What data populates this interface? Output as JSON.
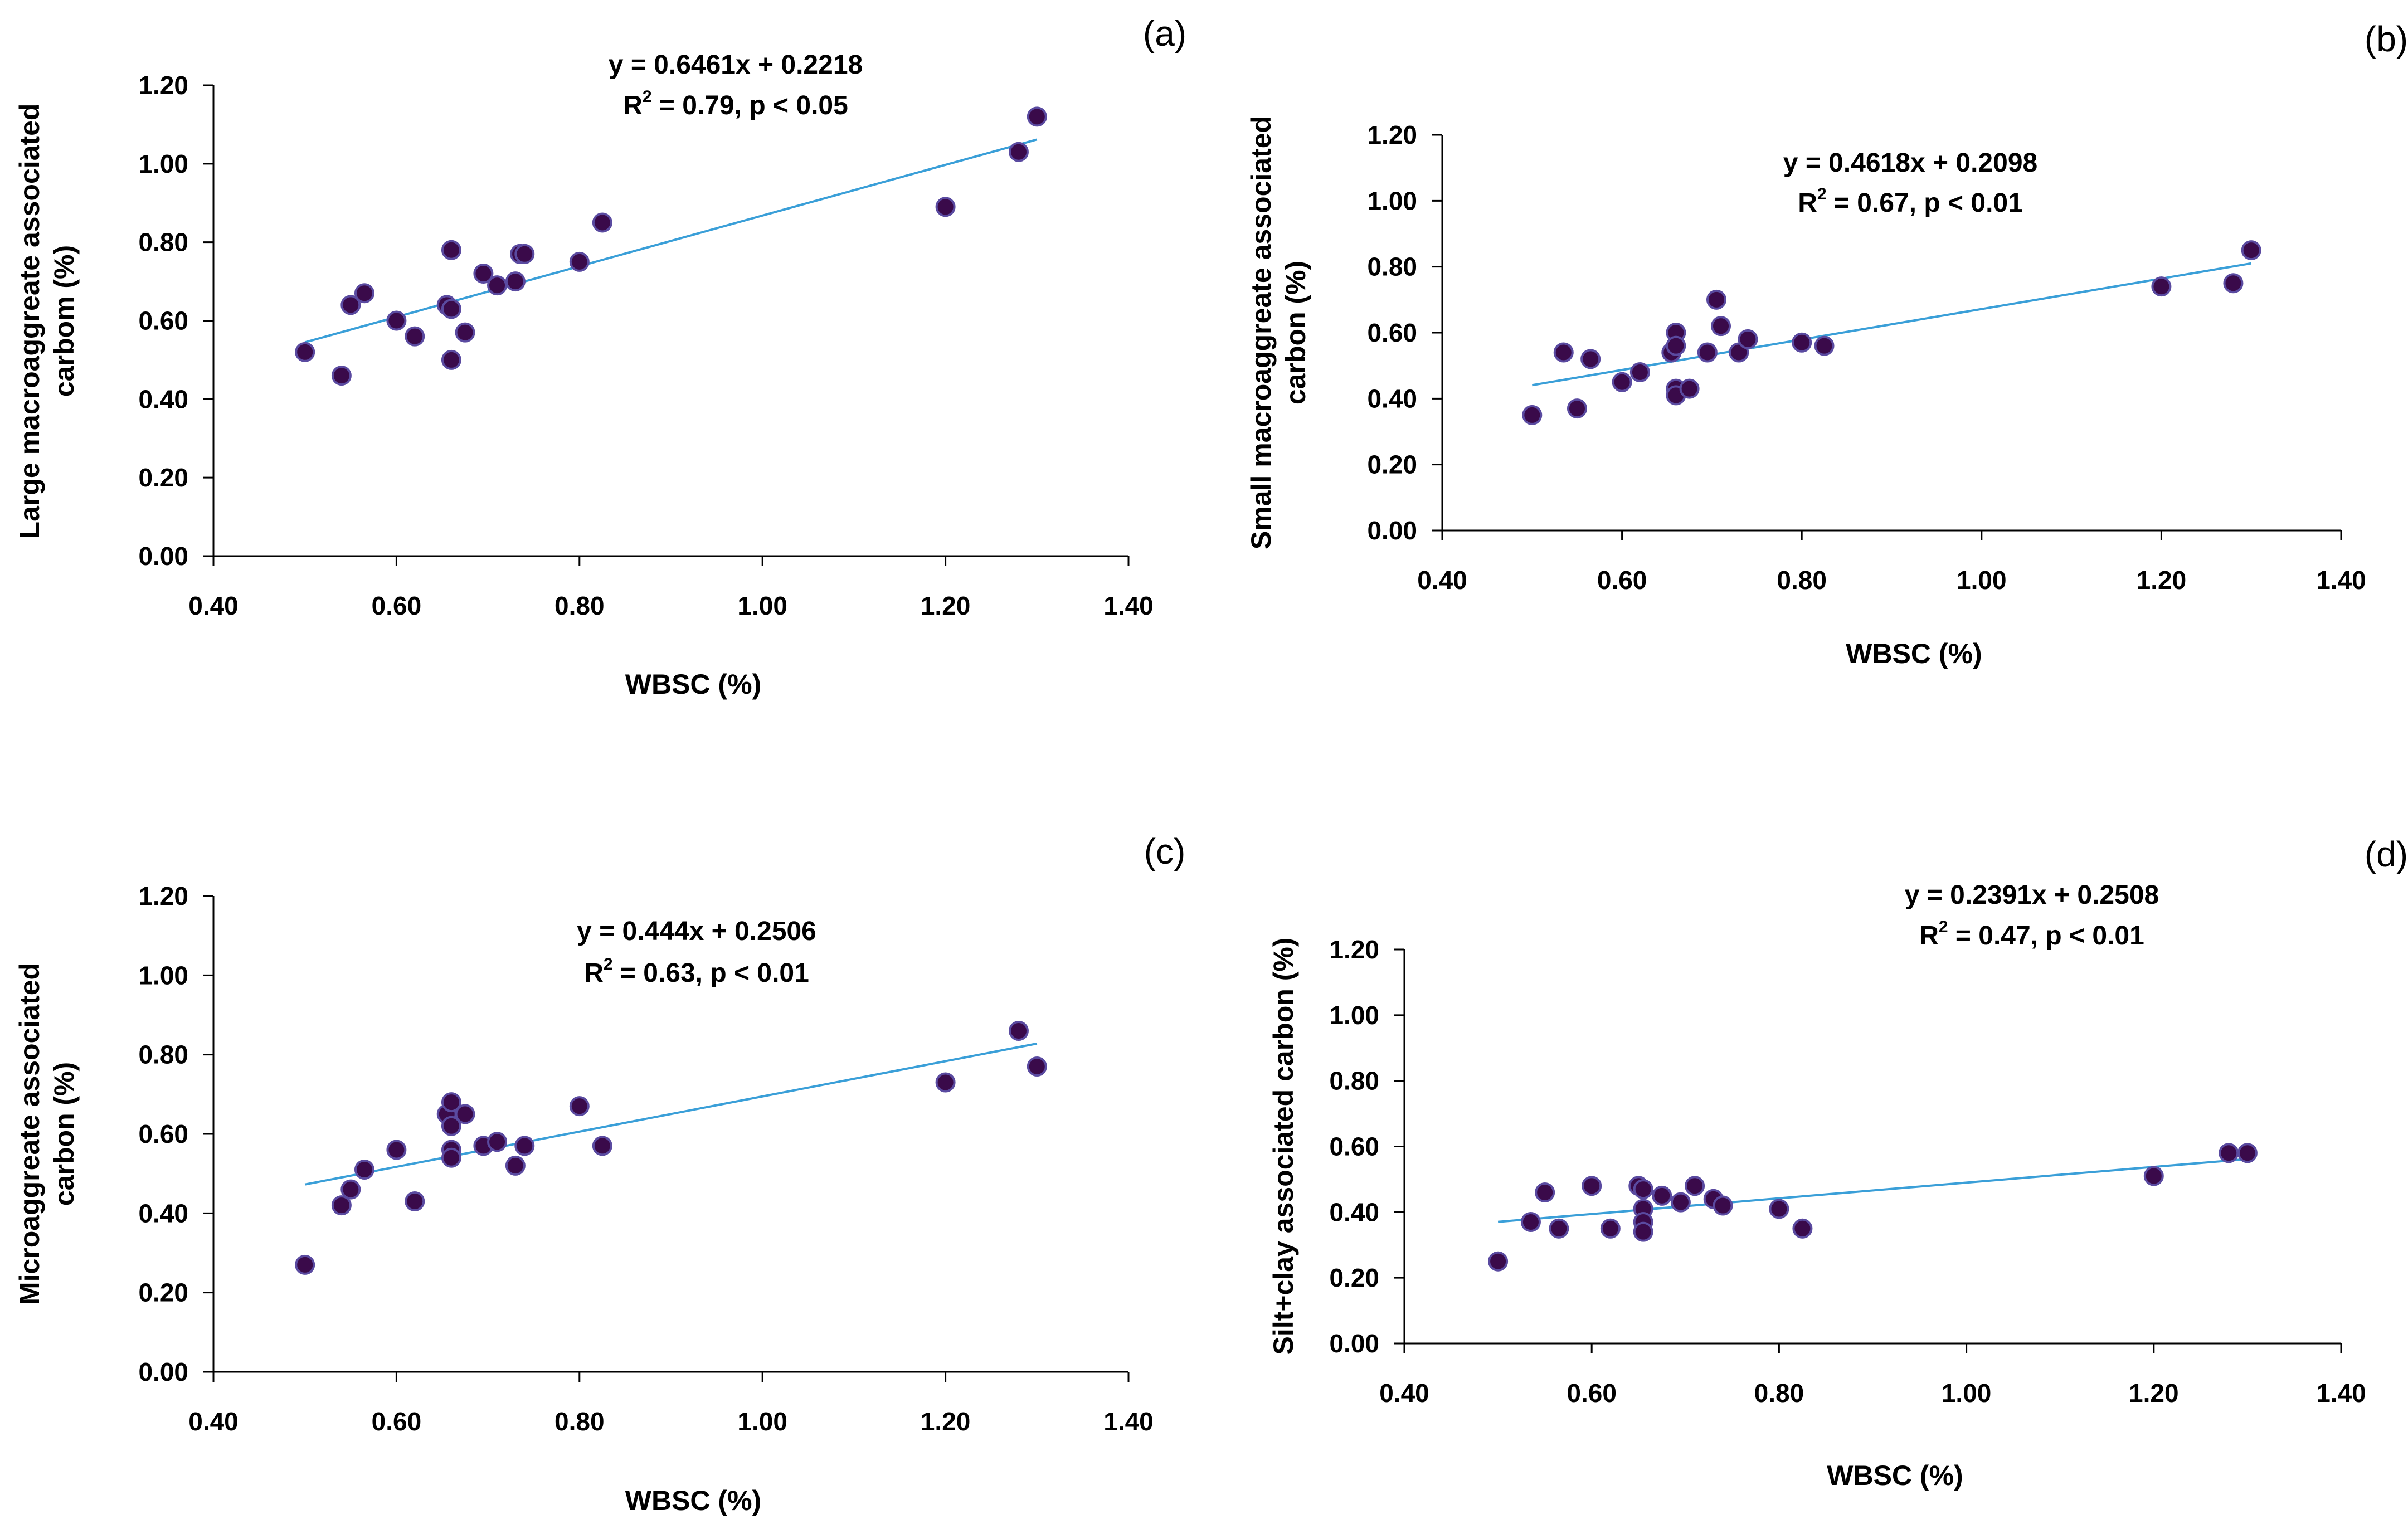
{
  "chart_data": [
    {
      "type": "scatter",
      "panel_label": "(a)",
      "equation": "y = 0.6461x + 0.2218",
      "r2_prefix": "R",
      "r2_exp": "2",
      "r2_suffix": " = 0.79, p < 0.05",
      "slope": 0.6461,
      "intercept": 0.2218,
      "xlabel": "WBSC (%)",
      "ylabel_lines": [
        "Large macroaggreate associated",
        "carbom (%)"
      ],
      "xlim": [
        0.4,
        1.4
      ],
      "ylim": [
        0.0,
        1.2
      ],
      "xticks": [
        "0.40",
        "0.60",
        "0.80",
        "1.00",
        "1.20",
        "1.40"
      ],
      "yticks": [
        "0.00",
        "0.20",
        "0.40",
        "0.60",
        "0.80",
        "1.00",
        "1.20"
      ],
      "grid": false,
      "points": [
        [
          0.5,
          0.52
        ],
        [
          0.54,
          0.46
        ],
        [
          0.55,
          0.64
        ],
        [
          0.565,
          0.67
        ],
        [
          0.6,
          0.6
        ],
        [
          0.62,
          0.56
        ],
        [
          0.655,
          0.64
        ],
        [
          0.66,
          0.78
        ],
        [
          0.66,
          0.63
        ],
        [
          0.66,
          0.5
        ],
        [
          0.675,
          0.57
        ],
        [
          0.695,
          0.72
        ],
        [
          0.71,
          0.69
        ],
        [
          0.73,
          0.7
        ],
        [
          0.735,
          0.77
        ],
        [
          0.74,
          0.77
        ],
        [
          0.8,
          0.75
        ],
        [
          0.825,
          0.85
        ],
        [
          1.2,
          0.89
        ],
        [
          1.28,
          1.03
        ],
        [
          1.3,
          1.12
        ]
      ]
    },
    {
      "type": "scatter",
      "panel_label": "(b)",
      "equation": "y = 0.4618x + 0.2098",
      "r2_prefix": "R",
      "r2_exp": "2",
      "r2_suffix": " = 0.67, p < 0.01",
      "slope": 0.4618,
      "intercept": 0.2098,
      "xlabel": "WBSC (%)",
      "ylabel_lines": [
        "Small macroaggreate associated",
        "carbon (%)"
      ],
      "xlim": [
        0.4,
        1.4
      ],
      "ylim": [
        0.0,
        1.2
      ],
      "xticks": [
        "0.40",
        "0.60",
        "0.80",
        "1.00",
        "1.20",
        "1.40"
      ],
      "yticks": [
        "0.00",
        "0.20",
        "0.40",
        "0.60",
        "0.80",
        "1.00",
        "1.20"
      ],
      "grid": false,
      "points": [
        [
          0.5,
          0.35
        ],
        [
          0.535,
          0.54
        ],
        [
          0.55,
          0.37
        ],
        [
          0.565,
          0.52
        ],
        [
          0.6,
          0.45
        ],
        [
          0.62,
          0.48
        ],
        [
          0.655,
          0.54
        ],
        [
          0.66,
          0.6
        ],
        [
          0.66,
          0.56
        ],
        [
          0.66,
          0.43
        ],
        [
          0.66,
          0.41
        ],
        [
          0.675,
          0.43
        ],
        [
          0.695,
          0.54
        ],
        [
          0.705,
          0.7
        ],
        [
          0.71,
          0.62
        ],
        [
          0.73,
          0.54
        ],
        [
          0.74,
          0.58
        ],
        [
          0.8,
          0.57
        ],
        [
          0.825,
          0.56
        ],
        [
          1.2,
          0.74
        ],
        [
          1.28,
          0.75
        ],
        [
          1.3,
          0.85
        ]
      ]
    },
    {
      "type": "scatter",
      "panel_label": "(c)",
      "equation": "y = 0.444x + 0.2506",
      "r2_prefix": "R",
      "r2_exp": "2",
      "r2_suffix": " = 0.63, p < 0.01",
      "slope": 0.444,
      "intercept": 0.2506,
      "xlabel": "WBSC (%)",
      "ylabel_lines": [
        "Microaggreate associated",
        "carbon (%)"
      ],
      "xlim": [
        0.4,
        1.4
      ],
      "ylim": [
        0.0,
        1.2
      ],
      "xticks": [
        "0.40",
        "0.60",
        "0.80",
        "1.00",
        "1.20",
        "1.40"
      ],
      "yticks": [
        "0.00",
        "0.20",
        "0.40",
        "0.60",
        "0.80",
        "1.00",
        "1.20"
      ],
      "grid": false,
      "points": [
        [
          0.5,
          0.27
        ],
        [
          0.54,
          0.42
        ],
        [
          0.55,
          0.46
        ],
        [
          0.565,
          0.51
        ],
        [
          0.6,
          0.56
        ],
        [
          0.62,
          0.43
        ],
        [
          0.655,
          0.65
        ],
        [
          0.66,
          0.68
        ],
        [
          0.66,
          0.62
        ],
        [
          0.66,
          0.56
        ],
        [
          0.66,
          0.54
        ],
        [
          0.675,
          0.65
        ],
        [
          0.695,
          0.57
        ],
        [
          0.71,
          0.58
        ],
        [
          0.73,
          0.52
        ],
        [
          0.74,
          0.57
        ],
        [
          0.8,
          0.67
        ],
        [
          0.825,
          0.57
        ],
        [
          1.2,
          0.73
        ],
        [
          1.28,
          0.86
        ],
        [
          1.3,
          0.77
        ]
      ]
    },
    {
      "type": "scatter",
      "panel_label": "(d)",
      "equation": "y = 0.2391x + 0.2508",
      "r2_prefix": "R",
      "r2_exp": "2",
      "r2_suffix": " = 0.47, p < 0.01",
      "slope": 0.2391,
      "intercept": 0.2508,
      "xlabel": "WBSC (%)",
      "ylabel_lines": [
        "Silt+clay associated  carbon (%)"
      ],
      "xlim": [
        0.4,
        1.4
      ],
      "ylim": [
        0.0,
        1.2
      ],
      "xticks": [
        "0.40",
        "0.60",
        "0.80",
        "1.00",
        "1.20",
        "1.40"
      ],
      "yticks": [
        "0.00",
        "0.20",
        "0.40",
        "0.60",
        "0.80",
        "1.00",
        "1.20"
      ],
      "grid": false,
      "points": [
        [
          0.5,
          0.25
        ],
        [
          0.535,
          0.37
        ],
        [
          0.55,
          0.46
        ],
        [
          0.565,
          0.35
        ],
        [
          0.6,
          0.48
        ],
        [
          0.62,
          0.35
        ],
        [
          0.65,
          0.48
        ],
        [
          0.655,
          0.47
        ],
        [
          0.655,
          0.41
        ],
        [
          0.655,
          0.37
        ],
        [
          0.655,
          0.34
        ],
        [
          0.675,
          0.45
        ],
        [
          0.695,
          0.43
        ],
        [
          0.71,
          0.48
        ],
        [
          0.73,
          0.44
        ],
        [
          0.74,
          0.42
        ],
        [
          0.8,
          0.41
        ],
        [
          0.825,
          0.35
        ],
        [
          1.2,
          0.51
        ],
        [
          1.28,
          0.58
        ],
        [
          1.3,
          0.58
        ]
      ]
    }
  ]
}
